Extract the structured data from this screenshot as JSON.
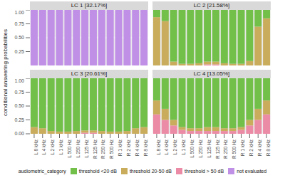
{
  "y_label": "conditional answering probabilities",
  "legend_title": "audiometric_category",
  "chart_data": [
    {
      "type": "bar",
      "stacked": true,
      "grid": true,
      "title": "LC 1 [32.17%]",
      "legend": "bottom",
      "categories": [
        "L 8 kHz",
        "L 4 kHz",
        "L 2 kHz",
        "L 1 kHz",
        "L 500 Hz",
        "L 250 Hz",
        "L 125 Hz",
        "R 125 Hz",
        "R 250 Hz",
        "R 500 Hz",
        "R 1 kHz",
        "R 2 kHz",
        "R 4 kHz",
        "R 8 kHz"
      ],
      "ylim": [
        0,
        1
      ],
      "yticks": [
        {
          "value": 0,
          "label": "0.00"
        },
        {
          "value": 0.25,
          "label": "0.25"
        },
        {
          "value": 0.5,
          "label": "0.50"
        },
        {
          "value": 0.75,
          "label": "0.75"
        },
        {
          "value": 1,
          "label": "1.00"
        }
      ],
      "series": [
        {
          "name": "threshold <20 dB",
          "color": "#72bf4a",
          "values": [
            0,
            0,
            0,
            0,
            0,
            0,
            0,
            0,
            0,
            0,
            0,
            0,
            0,
            0
          ]
        },
        {
          "name": "threshold 20-50 dB",
          "color": "#c9ad5c",
          "values": [
            0,
            0,
            0,
            0,
            0,
            0,
            0,
            0,
            0,
            0,
            0,
            0,
            0,
            0
          ]
        },
        {
          "name": "threshold > 50 dB",
          "color": "#ec8ba6",
          "values": [
            0,
            0,
            0,
            0,
            0,
            0,
            0,
            0,
            0,
            0,
            0,
            0,
            0,
            0
          ]
        },
        {
          "name": "not evaluated",
          "color": "#c08fe6",
          "values": [
            1,
            1,
            1,
            1,
            1,
            1,
            1,
            1,
            1,
            1,
            1,
            1,
            1,
            1
          ]
        }
      ]
    },
    {
      "type": "bar",
      "stacked": true,
      "grid": true,
      "title": "LC 2 [21.58%]",
      "legend": "bottom",
      "categories": [
        "L 8 kHz",
        "L 4 kHz",
        "L 2 kHz",
        "L 1 kHz",
        "L 500 Hz",
        "L 250 Hz",
        "L 125 Hz",
        "R 125 Hz",
        "R 250 Hz",
        "R 500 Hz",
        "R 1 kHz",
        "R 2 kHz",
        "R 4 kHz",
        "R 8 kHz"
      ],
      "ylim": [
        0,
        1
      ],
      "yticks": [
        {
          "value": 0,
          "label": "0.00"
        },
        {
          "value": 0.25,
          "label": "0.25"
        },
        {
          "value": 0.5,
          "label": "0.50"
        },
        {
          "value": 0.75,
          "label": "0.75"
        },
        {
          "value": 1,
          "label": "1.00"
        }
      ],
      "series": [
        {
          "name": "threshold <20 dB",
          "color": "#72bf4a",
          "values": [
            0.13,
            0.2,
            0.93,
            0.97,
            0.97,
            0.96,
            0.93,
            0.93,
            0.96,
            0.97,
            0.97,
            0.92,
            0.3,
            0.15
          ]
        },
        {
          "name": "threshold 20-50 dB",
          "color": "#c9ad5c",
          "values": [
            0.87,
            0.8,
            0.07,
            0.03,
            0.03,
            0.04,
            0.05,
            0.05,
            0.04,
            0.03,
            0.03,
            0.08,
            0.7,
            0.85
          ]
        },
        {
          "name": "threshold > 50 dB",
          "color": "#ec8ba6",
          "values": [
            0,
            0,
            0,
            0,
            0,
            0,
            0.02,
            0.02,
            0,
            0,
            0,
            0,
            0,
            0
          ]
        },
        {
          "name": "not evaluated",
          "color": "#c08fe6",
          "values": [
            0,
            0,
            0,
            0,
            0,
            0,
            0,
            0,
            0,
            0,
            0,
            0,
            0,
            0
          ]
        }
      ]
    },
    {
      "type": "bar",
      "stacked": true,
      "grid": true,
      "title": "LC 3 [20.61%]",
      "legend": "bottom",
      "categories": [
        "L 8 kHz",
        "L 4 kHz",
        "L 2 kHz",
        "L 1 kHz",
        "L 500 Hz",
        "L 250 Hz",
        "L 125 Hz",
        "R 125 Hz",
        "R 250 Hz",
        "R 500 Hz",
        "R 1 kHz",
        "R 2 kHz",
        "R 4 kHz",
        "R 8 kHz"
      ],
      "ylim": [
        0,
        1
      ],
      "yticks": [
        {
          "value": 0,
          "label": "0.00"
        },
        {
          "value": 0.25,
          "label": "0.25"
        },
        {
          "value": 0.5,
          "label": "0.50"
        },
        {
          "value": 0.75,
          "label": "0.75"
        },
        {
          "value": 1,
          "label": "1.00"
        }
      ],
      "series": [
        {
          "name": "threshold <20 dB",
          "color": "#72bf4a",
          "values": [
            0.88,
            0.9,
            0.95,
            0.96,
            0.96,
            0.95,
            0.94,
            0.94,
            0.95,
            0.96,
            0.96,
            0.95,
            0.9,
            0.88
          ]
        },
        {
          "name": "threshold 20-50 dB",
          "color": "#c9ad5c",
          "values": [
            0.12,
            0.1,
            0.05,
            0.04,
            0.04,
            0.05,
            0.04,
            0.04,
            0.05,
            0.04,
            0.04,
            0.05,
            0.1,
            0.12
          ]
        },
        {
          "name": "threshold > 50 dB",
          "color": "#ec8ba6",
          "values": [
            0,
            0,
            0,
            0,
            0,
            0,
            0.02,
            0.02,
            0,
            0,
            0,
            0,
            0,
            0
          ]
        },
        {
          "name": "not evaluated",
          "color": "#c08fe6",
          "values": [
            0,
            0,
            0,
            0,
            0,
            0,
            0,
            0,
            0,
            0,
            0,
            0,
            0,
            0
          ]
        }
      ]
    },
    {
      "type": "bar",
      "stacked": true,
      "grid": true,
      "title": "LC 4 [13.05%]",
      "legend": "bottom",
      "categories": [
        "L 8 kHz",
        "L 4 kHz",
        "L 2 kHz",
        "L 1 kHz",
        "L 500 Hz",
        "L 250 Hz",
        "L 125 Hz",
        "R 125 Hz",
        "R 250 Hz",
        "R 500 Hz",
        "R 1 kHz",
        "R 2 kHz",
        "R 4 kHz",
        "R 8 kHz"
      ],
      "ylim": [
        0,
        1
      ],
      "yticks": [
        {
          "value": 0,
          "label": "0.00"
        },
        {
          "value": 0.25,
          "label": "0.25"
        },
        {
          "value": 0.5,
          "label": "0.50"
        },
        {
          "value": 0.75,
          "label": "0.75"
        },
        {
          "value": 1,
          "label": "1.00"
        }
      ],
      "series": [
        {
          "name": "threshold <20 dB",
          "color": "#72bf4a",
          "values": [
            0.4,
            0.55,
            0.75,
            0.88,
            0.9,
            0.9,
            0.88,
            0.88,
            0.9,
            0.9,
            0.88,
            0.75,
            0.55,
            0.4
          ]
        },
        {
          "name": "threshold 20-50 dB",
          "color": "#c9ad5c",
          "values": [
            0.25,
            0.2,
            0.1,
            0.05,
            0.05,
            0.05,
            0.07,
            0.07,
            0.05,
            0.05,
            0.05,
            0.1,
            0.2,
            0.25
          ]
        },
        {
          "name": "threshold > 50 dB",
          "color": "#ec8ba6",
          "values": [
            0.35,
            0.25,
            0.15,
            0.07,
            0.05,
            0.05,
            0.05,
            0.05,
            0.05,
            0.05,
            0.07,
            0.15,
            0.25,
            0.35
          ]
        },
        {
          "name": "not evaluated",
          "color": "#c08fe6",
          "values": [
            0,
            0,
            0,
            0,
            0,
            0,
            0,
            0,
            0,
            0,
            0,
            0,
            0,
            0
          ]
        }
      ]
    }
  ]
}
